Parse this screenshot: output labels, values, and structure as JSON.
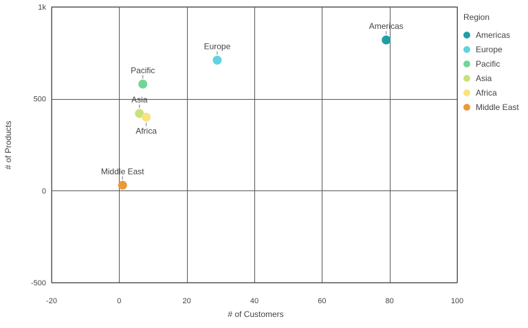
{
  "chart_data": {
    "type": "scatter",
    "title": "",
    "xlabel": "# of Customers",
    "ylabel": "# of Products",
    "xlim": [
      -20,
      100
    ],
    "ylim": [
      -500,
      1000
    ],
    "x_ticks": [
      -20,
      0,
      20,
      40,
      60,
      80,
      100
    ],
    "x_tick_labels": [
      "-20",
      "0",
      "20",
      "40",
      "60",
      "80",
      "100"
    ],
    "y_ticks": [
      -500,
      0,
      500,
      1000
    ],
    "y_tick_labels": [
      "-500",
      "0",
      "500",
      "1k"
    ],
    "grid": true,
    "legend": {
      "title": "Region",
      "position": "right"
    },
    "series": [
      {
        "name": "Americas",
        "color": "#1f9ea6",
        "x": 79,
        "y": 820,
        "label": "Americas",
        "label_position": "above"
      },
      {
        "name": "Europe",
        "color": "#5fd3de",
        "x": 29,
        "y": 710,
        "label": "Europe",
        "label_position": "above"
      },
      {
        "name": "Pacific",
        "color": "#72d596",
        "x": 7,
        "y": 580,
        "label": "Pacific",
        "label_position": "above"
      },
      {
        "name": "Asia",
        "color": "#c8e27a",
        "x": 6,
        "y": 420,
        "label": "Asia",
        "label_position": "above"
      },
      {
        "name": "Africa",
        "color": "#f8e47e",
        "x": 8,
        "y": 400,
        "label": "Africa",
        "label_position": "below"
      },
      {
        "name": "Middle East",
        "color": "#ea9a3a",
        "x": 1,
        "y": 30,
        "label": "Middle East",
        "label_position": "above"
      }
    ]
  }
}
